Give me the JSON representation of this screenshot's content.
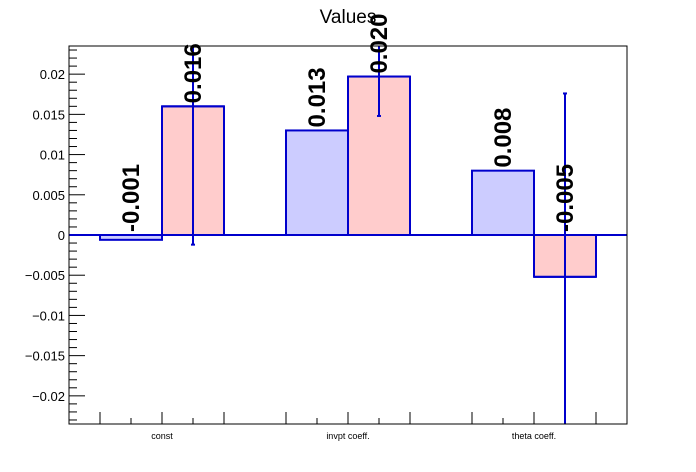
{
  "chart_data": {
    "type": "bar",
    "title": "Values",
    "xlabel": "",
    "ylabel": "",
    "categories": [
      "const",
      "invpt coeff.",
      "theta coeff."
    ],
    "ylim": [
      -0.0235,
      0.0235
    ],
    "yticks": [
      -0.02,
      -0.015,
      -0.01,
      -0.005,
      0,
      0.005,
      0.01,
      0.015,
      0.02
    ],
    "ytick_labels": [
      "−0.02",
      "−0.015",
      "−0.01",
      "−0.005",
      "0",
      "0.005",
      "0.01",
      "0.015",
      "0.02"
    ],
    "grid": false,
    "series": [
      {
        "values": [
          -0.0006,
          0.013,
          0.008
        ],
        "labels": [
          "-0.001",
          "0.013",
          "0.008"
        ],
        "errors": [
          null,
          null,
          null
        ],
        "fill": "#ccccff",
        "stroke": "#0000cc"
      },
      {
        "values": [
          0.016,
          0.0197,
          -0.0052
        ],
        "labels": [
          "0.016",
          "0.020",
          "-0.005"
        ],
        "errors": [
          0.0172,
          0.0049,
          0.0228
        ],
        "fill": "#ffcccc",
        "stroke": "#0000cc"
      }
    ]
  }
}
